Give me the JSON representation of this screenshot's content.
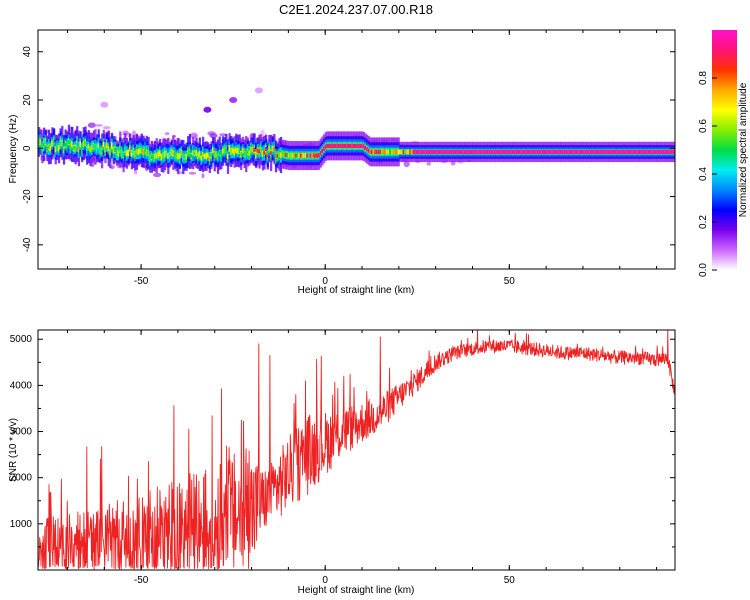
{
  "figure": {
    "title": "C2E1.2024.237.07.00.R18"
  },
  "chart_data": [
    {
      "type": "heatmap",
      "title": "C2E1.2024.237.07.00.R18",
      "xlabel": "Height of straight line (km)",
      "ylabel": "Frequency (Hz)",
      "xlim": [
        -78,
        95
      ],
      "ylim": [
        -50,
        49
      ],
      "xticks": [
        -50,
        0,
        50
      ],
      "yticks": [
        -40,
        -20,
        0,
        20,
        40
      ],
      "colorbar": {
        "label": "Normalized spectral amplitude",
        "range": [
          0,
          1
        ],
        "ticks": [
          0.0,
          0.2,
          0.4,
          0.6,
          0.8
        ],
        "colors": [
          "#ffffff",
          "#cc66ff",
          "#7700ee",
          "#0000ff",
          "#0088ff",
          "#00eeee",
          "#00dd44",
          "#88ee00",
          "#ffff00",
          "#ffaa00",
          "#ff3300",
          "#ff1177",
          "#ff11cc"
        ]
      },
      "band_center_hz": [
        {
          "x": -78,
          "y": 1.5
        },
        {
          "x": -60,
          "y": 0.5
        },
        {
          "x": -50,
          "y": -2.5
        },
        {
          "x": -35,
          "y": -3
        },
        {
          "x": -25,
          "y": -1.5
        },
        {
          "x": -15,
          "y": -1.5
        },
        {
          "x": -10,
          "y": -3
        },
        {
          "x": -2,
          "y": -3
        },
        {
          "x": 0,
          "y": 1
        },
        {
          "x": 10,
          "y": 1
        },
        {
          "x": 12,
          "y": -1.5
        },
        {
          "x": 30,
          "y": -1.5
        },
        {
          "x": 95,
          "y": -1.5
        }
      ],
      "features": [
        {
          "x": -32,
          "y": 16,
          "amplitude": 0.15
        },
        {
          "x": -25,
          "y": 20,
          "amplitude": 0.12
        },
        {
          "x": -60,
          "y": 18,
          "amplitude": 0.05
        },
        {
          "x": -18,
          "y": 24,
          "amplitude": 0.05
        }
      ]
    },
    {
      "type": "line",
      "xlabel": "Height of straight line (km)",
      "ylabel": "SNR (10 * v/v)",
      "xlim": [
        -78,
        95
      ],
      "ylim": [
        0,
        5200
      ],
      "xticks": [
        -50,
        0,
        50
      ],
      "yticks": [
        1000,
        2000,
        3000,
        4000,
        5000
      ],
      "series": [
        {
          "color": "#ee2222",
          "trend_x": [
            -78,
            -70,
            -60,
            -50,
            -40,
            -30,
            -25,
            -20,
            -17,
            -15,
            -10,
            -5,
            0,
            5,
            10,
            15,
            20,
            25,
            30,
            35,
            40,
            45,
            50,
            55,
            60,
            65,
            70,
            75,
            80,
            85,
            90,
            93,
            95
          ],
          "trend_y": [
            400,
            450,
            550,
            650,
            800,
            1000,
            1150,
            1250,
            1500,
            1600,
            2100,
            2500,
            2750,
            3000,
            3200,
            3400,
            3750,
            4100,
            4500,
            4700,
            4800,
            4850,
            4850,
            4800,
            4750,
            4700,
            4700,
            4650,
            4600,
            4600,
            4550,
            4600,
            3800
          ],
          "noise_amplitude": [
            700,
            750,
            900,
            1000,
            1200,
            1300,
            1400,
            1400,
            700,
            700,
            800,
            900,
            700,
            550,
            450,
            400,
            300,
            250,
            200,
            150,
            150,
            150,
            150,
            150,
            150,
            150,
            150,
            150,
            150,
            150,
            150,
            150,
            150
          ],
          "spikes": [
            {
              "x": -75,
              "y": 1850
            },
            {
              "x": -61,
              "y": 2400
            },
            {
              "x": -48,
              "y": 2350
            },
            {
              "x": -37,
              "y": 3050
            },
            {
              "x": -18,
              "y": 4900
            },
            {
              "x": -15,
              "y": 4650
            },
            {
              "x": -8,
              "y": 3800
            },
            {
              "x": 5,
              "y": 4200
            },
            {
              "x": 15,
              "y": 5050
            },
            {
              "x": 93,
              "y": 5250
            }
          ]
        }
      ]
    }
  ]
}
